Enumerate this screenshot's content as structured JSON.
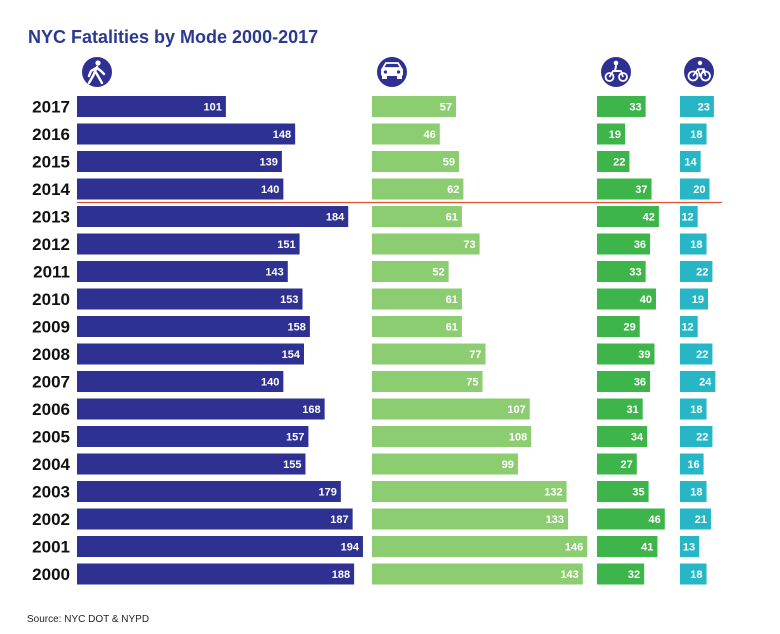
{
  "title": "NYC Fatalities by Mode 2000-2017",
  "source": "Source: NYC DOT & NYPD",
  "chart_data": {
    "type": "bar",
    "categories": [
      "2017",
      "2016",
      "2015",
      "2014",
      "2013",
      "2012",
      "2011",
      "2010",
      "2009",
      "2008",
      "2007",
      "2006",
      "2005",
      "2004",
      "2003",
      "2002",
      "2001",
      "2000"
    ],
    "series": [
      {
        "icon": "pedestrian-icon",
        "color": "#2e3192",
        "values": [
          101,
          148,
          139,
          140,
          184,
          151,
          143,
          153,
          158,
          154,
          140,
          168,
          157,
          155,
          179,
          187,
          194,
          188
        ]
      },
      {
        "icon": "car-icon",
        "color": "#8ccd72",
        "values": [
          57,
          46,
          59,
          62,
          61,
          73,
          52,
          61,
          61,
          77,
          75,
          107,
          108,
          99,
          132,
          133,
          146,
          143
        ]
      },
      {
        "icon": "motorcycle-icon",
        "color": "#3db54a",
        "values": [
          33,
          19,
          22,
          37,
          42,
          36,
          33,
          40,
          29,
          39,
          36,
          31,
          34,
          27,
          35,
          46,
          41,
          32
        ]
      },
      {
        "icon": "bicycle-icon",
        "color": "#27b6c5",
        "values": [
          23,
          18,
          14,
          20,
          12,
          18,
          22,
          19,
          12,
          22,
          24,
          18,
          22,
          16,
          18,
          21,
          13,
          18
        ]
      }
    ],
    "divider": {
      "between": [
        "2014",
        "2013"
      ],
      "color": "#e0532d"
    }
  }
}
